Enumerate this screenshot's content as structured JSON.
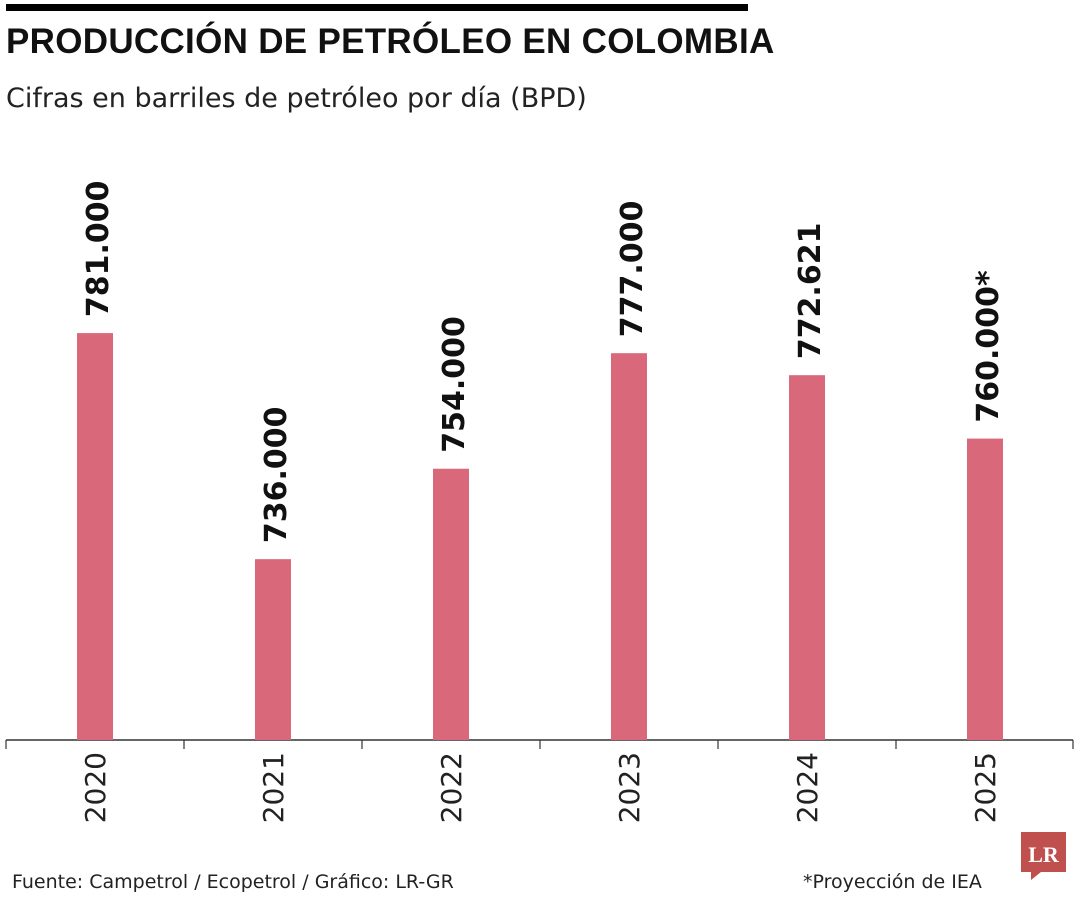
{
  "header": {
    "title": "PRODUCCIÓN DE PETRÓLEO EN COLOMBIA",
    "subtitle": "Cifras en barriles de petróleo por día (BPD)"
  },
  "footer": {
    "source": "Fuente: Campetrol / Ecopetrol / Gráfico: LR-GR",
    "note": "*Proyección de IEA"
  },
  "logo": {
    "text": "LR",
    "color": "#c0504d"
  },
  "colors": {
    "bar": "#d9697a",
    "axis": "#333333"
  },
  "chart_data": {
    "type": "bar",
    "title": "PRODUCCIÓN DE PETRÓLEO EN COLOMBIA",
    "subtitle": "Cifras en barriles de petróleo por día (BPD)",
    "categories": [
      "2020",
      "2021",
      "2022",
      "2023",
      "2024",
      "2025"
    ],
    "values": [
      781000,
      736000,
      754000,
      777000,
      772621,
      760000
    ],
    "value_labels": [
      "781.000",
      "736.000",
      "754.000",
      "777.000",
      "772.621",
      "760.000*"
    ],
    "ylim": [
      700000,
      785000
    ],
    "xlabel": "",
    "ylabel": "",
    "grid": false,
    "legend": "none"
  }
}
